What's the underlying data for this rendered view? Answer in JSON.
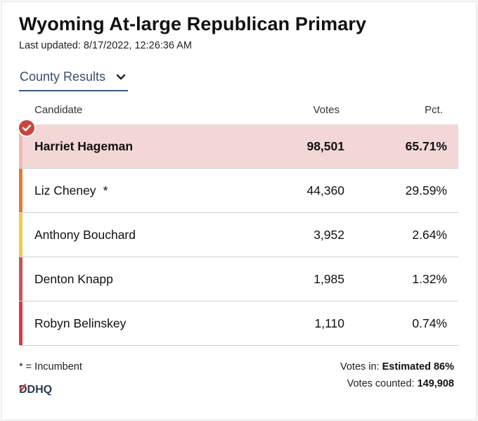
{
  "header": {
    "title": "Wyoming At-large Republican Primary",
    "updated_label": "Last updated:",
    "updated_value": "8/17/2022, 12:26:36 AM"
  },
  "dropdown": {
    "label": "County Results",
    "icon": "chevron-down-icon"
  },
  "table": {
    "columns": {
      "candidate": "Candidate",
      "votes": "Votes",
      "pct": "Pct."
    },
    "rows": [
      {
        "name": "Harriet Hageman",
        "incumbent_mark": "",
        "votes": "98,501",
        "pct": "65.71%",
        "color": "#f2b8b4",
        "winner": true
      },
      {
        "name": "Liz Cheney",
        "incumbent_mark": "*",
        "votes": "44,360",
        "pct": "29.59%",
        "color": "#e07a3a",
        "winner": false
      },
      {
        "name": "Anthony Bouchard",
        "incumbent_mark": "",
        "votes": "3,952",
        "pct": "2.64%",
        "color": "#f2c94c",
        "winner": false
      },
      {
        "name": "Denton Knapp",
        "incumbent_mark": "",
        "votes": "1,985",
        "pct": "1.32%",
        "color": "#c9545a",
        "winner": false
      },
      {
        "name": "Robyn Belinskey",
        "incumbent_mark": "",
        "votes": "1,110",
        "pct": "0.74%",
        "color": "#d9393e",
        "winner": false
      }
    ]
  },
  "footer": {
    "legend": "* = Incumbent",
    "logo_text": "DDHQ",
    "votes_in_label": "Votes in:",
    "votes_in_value": "Estimated 86%",
    "votes_counted_label": "Votes counted:",
    "votes_counted_value": "149,908"
  },
  "colors": {
    "winner_bg": "#f3d7d7",
    "check": "#c9453e",
    "accent": "#3d5a80"
  }
}
